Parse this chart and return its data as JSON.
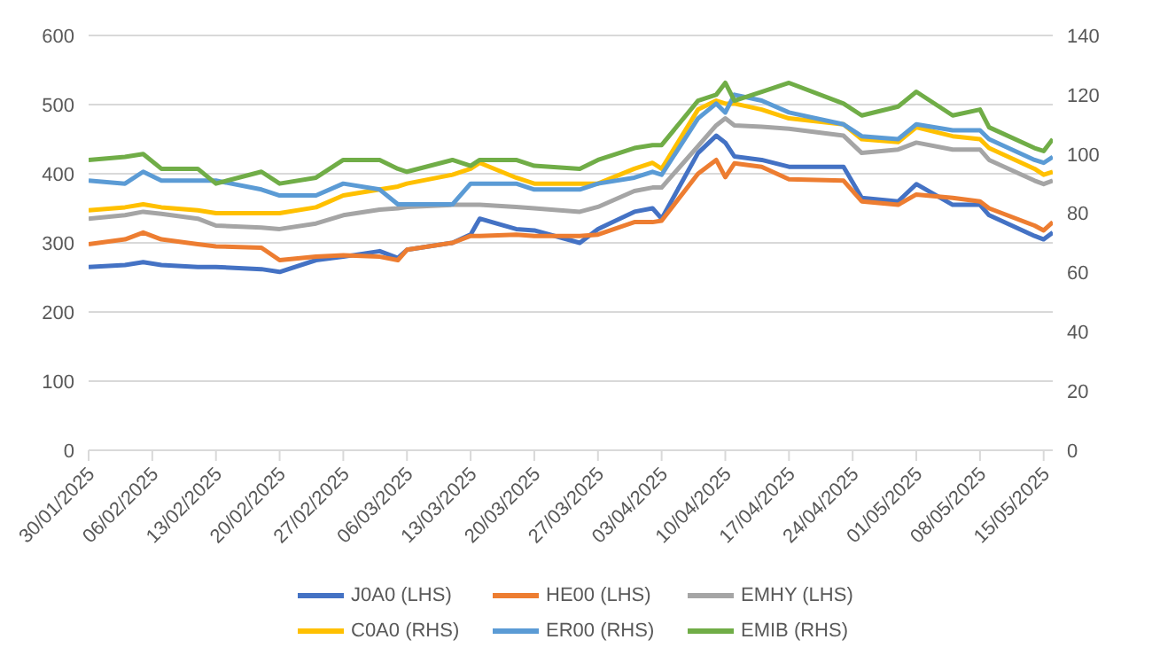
{
  "chart_data": {
    "type": "line",
    "x": [
      "2025-01-30",
      "2025-02-03",
      "2025-02-05",
      "2025-02-07",
      "2025-02-11",
      "2025-02-13",
      "2025-02-18",
      "2025-02-20",
      "2025-02-24",
      "2025-02-27",
      "2025-03-03",
      "2025-03-05",
      "2025-03-06",
      "2025-03-11",
      "2025-03-13",
      "2025-03-14",
      "2025-03-18",
      "2025-03-20",
      "2025-03-25",
      "2025-03-27",
      "2025-03-31",
      "2025-04-02",
      "2025-04-03",
      "2025-04-07",
      "2025-04-09",
      "2025-04-10",
      "2025-04-11",
      "2025-04-14",
      "2025-04-17",
      "2025-04-23",
      "2025-04-25",
      "2025-04-29",
      "2025-05-01",
      "2025-05-05",
      "2025-05-08",
      "2025-05-09",
      "2025-05-14",
      "2025-05-15",
      "2025-05-16"
    ],
    "series": [
      {
        "name": "J0A0 (LHS)",
        "color": "#4472c4",
        "values": [
          265,
          268,
          272,
          268,
          265,
          265,
          262,
          258,
          275,
          280,
          288,
          278,
          290,
          300,
          312,
          335,
          320,
          318,
          300,
          320,
          345,
          350,
          335,
          430,
          455,
          445,
          425,
          420,
          410,
          410,
          365,
          360,
          385,
          355,
          355,
          340,
          310,
          305,
          315
        ]
      },
      {
        "name": "HE00 (LHS)",
        "color": "#ed7d31",
        "values": [
          298,
          305,
          315,
          305,
          298,
          295,
          293,
          275,
          280,
          282,
          280,
          275,
          290,
          300,
          310,
          310,
          312,
          310,
          310,
          312,
          330,
          330,
          332,
          400,
          420,
          395,
          415,
          410,
          392,
          390,
          360,
          355,
          370,
          365,
          360,
          350,
          325,
          318,
          330
        ]
      },
      {
        "name": "EMHY (LHS)",
        "color": "#a5a5a5",
        "values": [
          335,
          340,
          345,
          342,
          335,
          325,
          322,
          320,
          328,
          340,
          348,
          350,
          352,
          355,
          355,
          355,
          352,
          350,
          345,
          352,
          375,
          380,
          380,
          440,
          470,
          480,
          470,
          468,
          465,
          455,
          430,
          435,
          445,
          435,
          435,
          420,
          390,
          385,
          390
        ]
      },
      {
        "name": "C0A0 (RHS)",
        "color": "#ffc000",
        "axis": "y2",
        "values": [
          81,
          82,
          83,
          82,
          81,
          80,
          80,
          80,
          82,
          86,
          88,
          89,
          90,
          93,
          95,
          97,
          92,
          90,
          90,
          90,
          95,
          97,
          95,
          115,
          118,
          117,
          117,
          115,
          112,
          110,
          105,
          104,
          109,
          106,
          105,
          102,
          95,
          93,
          94
        ]
      },
      {
        "name": "ER00 (RHS)",
        "color": "#5b9bd5",
        "axis": "y2",
        "values": [
          91,
          90,
          94,
          91,
          91,
          91,
          88,
          86,
          86,
          90,
          88,
          83,
          83,
          83,
          90,
          90,
          90,
          88,
          88,
          90,
          92,
          94,
          93,
          112,
          117,
          114,
          120,
          118,
          114,
          110,
          106,
          105,
          110,
          108,
          108,
          105,
          98,
          97,
          99
        ]
      },
      {
        "name": "EMIB (RHS)",
        "color": "#70ad47",
        "axis": "y2",
        "values": [
          98,
          99,
          100,
          95,
          95,
          90,
          94,
          90,
          92,
          98,
          98,
          95,
          94,
          98,
          96,
          98,
          98,
          96,
          95,
          98,
          102,
          103,
          103,
          118,
          120,
          124,
          118,
          121,
          124,
          117,
          113,
          116,
          121,
          113,
          115,
          109,
          102,
          101,
          105
        ]
      }
    ],
    "xlim": [
      "2025-01-30",
      "2025-05-16"
    ],
    "xticks": [
      {
        "value": "2025-01-30",
        "label": "30/01/2025"
      },
      {
        "value": "2025-02-06",
        "label": "06/02/2025"
      },
      {
        "value": "2025-02-13",
        "label": "13/02/2025"
      },
      {
        "value": "2025-02-20",
        "label": "20/02/2025"
      },
      {
        "value": "2025-02-27",
        "label": "27/02/2025"
      },
      {
        "value": "2025-03-06",
        "label": "06/03/2025"
      },
      {
        "value": "2025-03-13",
        "label": "13/03/2025"
      },
      {
        "value": "2025-03-20",
        "label": "20/03/2025"
      },
      {
        "value": "2025-03-27",
        "label": "27/03/2025"
      },
      {
        "value": "2025-04-03",
        "label": "03/04/2025"
      },
      {
        "value": "2025-04-10",
        "label": "10/04/2025"
      },
      {
        "value": "2025-04-17",
        "label": "17/04/2025"
      },
      {
        "value": "2025-04-24",
        "label": "24/04/2025"
      },
      {
        "value": "2025-05-01",
        "label": "01/05/2025"
      },
      {
        "value": "2025-05-08",
        "label": "08/05/2025"
      },
      {
        "value": "2025-05-15",
        "label": "15/05/2025"
      }
    ],
    "ylim": [
      0,
      600
    ],
    "yticks": [
      0,
      100,
      200,
      300,
      400,
      500,
      600
    ],
    "y2lim": [
      0,
      140
    ],
    "y2ticks": [
      0,
      20,
      40,
      60,
      80,
      100,
      120,
      140
    ],
    "grid": "y",
    "legend": "bottom",
    "marker": "none",
    "line_style": "solid"
  }
}
